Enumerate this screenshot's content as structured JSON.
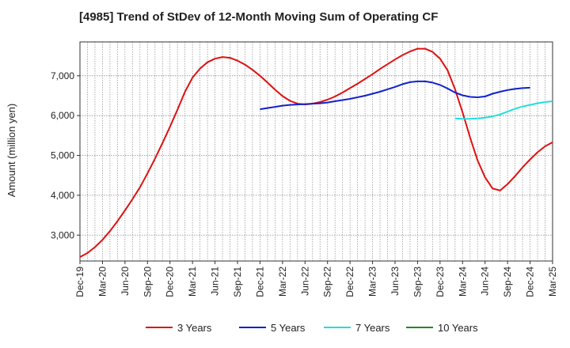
{
  "chart_data": {
    "type": "line",
    "title": "[4985]  Trend of StDev of 12-Month Moving Sum of Operating CF",
    "ylabel": "Amount (million yen)",
    "xlabel": "",
    "x_tick_labels": [
      "Dec-19",
      "Mar-20",
      "Jun-20",
      "Sep-20",
      "Dec-20",
      "Mar-21",
      "Jun-21",
      "Sep-21",
      "Dec-21",
      "Mar-22",
      "Jun-22",
      "Sep-22",
      "Dec-22",
      "Mar-23",
      "Jun-23",
      "Sep-23",
      "Dec-23",
      "Mar-24",
      "Jun-24",
      "Sep-24",
      "Dec-24",
      "Mar-25"
    ],
    "y_ticks": [
      3000,
      4000,
      5000,
      6000,
      7000
    ],
    "y_tick_labels": [
      "3,000",
      "4,000",
      "5,000",
      "6,000",
      "7,000"
    ],
    "ylim": [
      2350,
      7850
    ],
    "grid": true,
    "legend_position": "bottom",
    "series": [
      {
        "name": "3 Years",
        "color": "#dd1111",
        "start_index": 0,
        "values": [
          2450,
          2550,
          2700,
          2880,
          3100,
          3350,
          3620,
          3900,
          4200,
          4550,
          4920,
          5310,
          5720,
          6150,
          6600,
          6950,
          7180,
          7340,
          7430,
          7470,
          7450,
          7380,
          7280,
          7150,
          7000,
          6830,
          6650,
          6490,
          6370,
          6300,
          6280,
          6300,
          6340,
          6400,
          6480,
          6580,
          6690,
          6800,
          6920,
          7040,
          7170,
          7290,
          7410,
          7520,
          7610,
          7680,
          7680,
          7600,
          7430,
          7140,
          6660,
          6080,
          5450,
          4880,
          4450,
          4170,
          4120,
          4280,
          4480,
          4700,
          4900,
          5080,
          5230,
          5330
        ]
      },
      {
        "name": "5 Years",
        "color": "#1122cc",
        "start_index": 24,
        "values": [
          6160,
          6190,
          6220,
          6250,
          6270,
          6280,
          6290,
          6300,
          6310,
          6330,
          6360,
          6390,
          6420,
          6460,
          6500,
          6550,
          6600,
          6660,
          6720,
          6790,
          6840,
          6860,
          6860,
          6830,
          6770,
          6680,
          6580,
          6510,
          6470,
          6460,
          6480,
          6550,
          6600,
          6640,
          6670,
          6690,
          6700
        ]
      },
      {
        "name": "7 Years",
        "color": "#22dddd",
        "start_index": 50,
        "values": [
          5930,
          5920,
          5920,
          5930,
          5950,
          5980,
          6030,
          6100,
          6170,
          6230,
          6270,
          6310,
          6340,
          6360
        ]
      },
      {
        "name": "10 Years",
        "color": "#228822",
        "start_index": 0,
        "values": []
      }
    ]
  }
}
